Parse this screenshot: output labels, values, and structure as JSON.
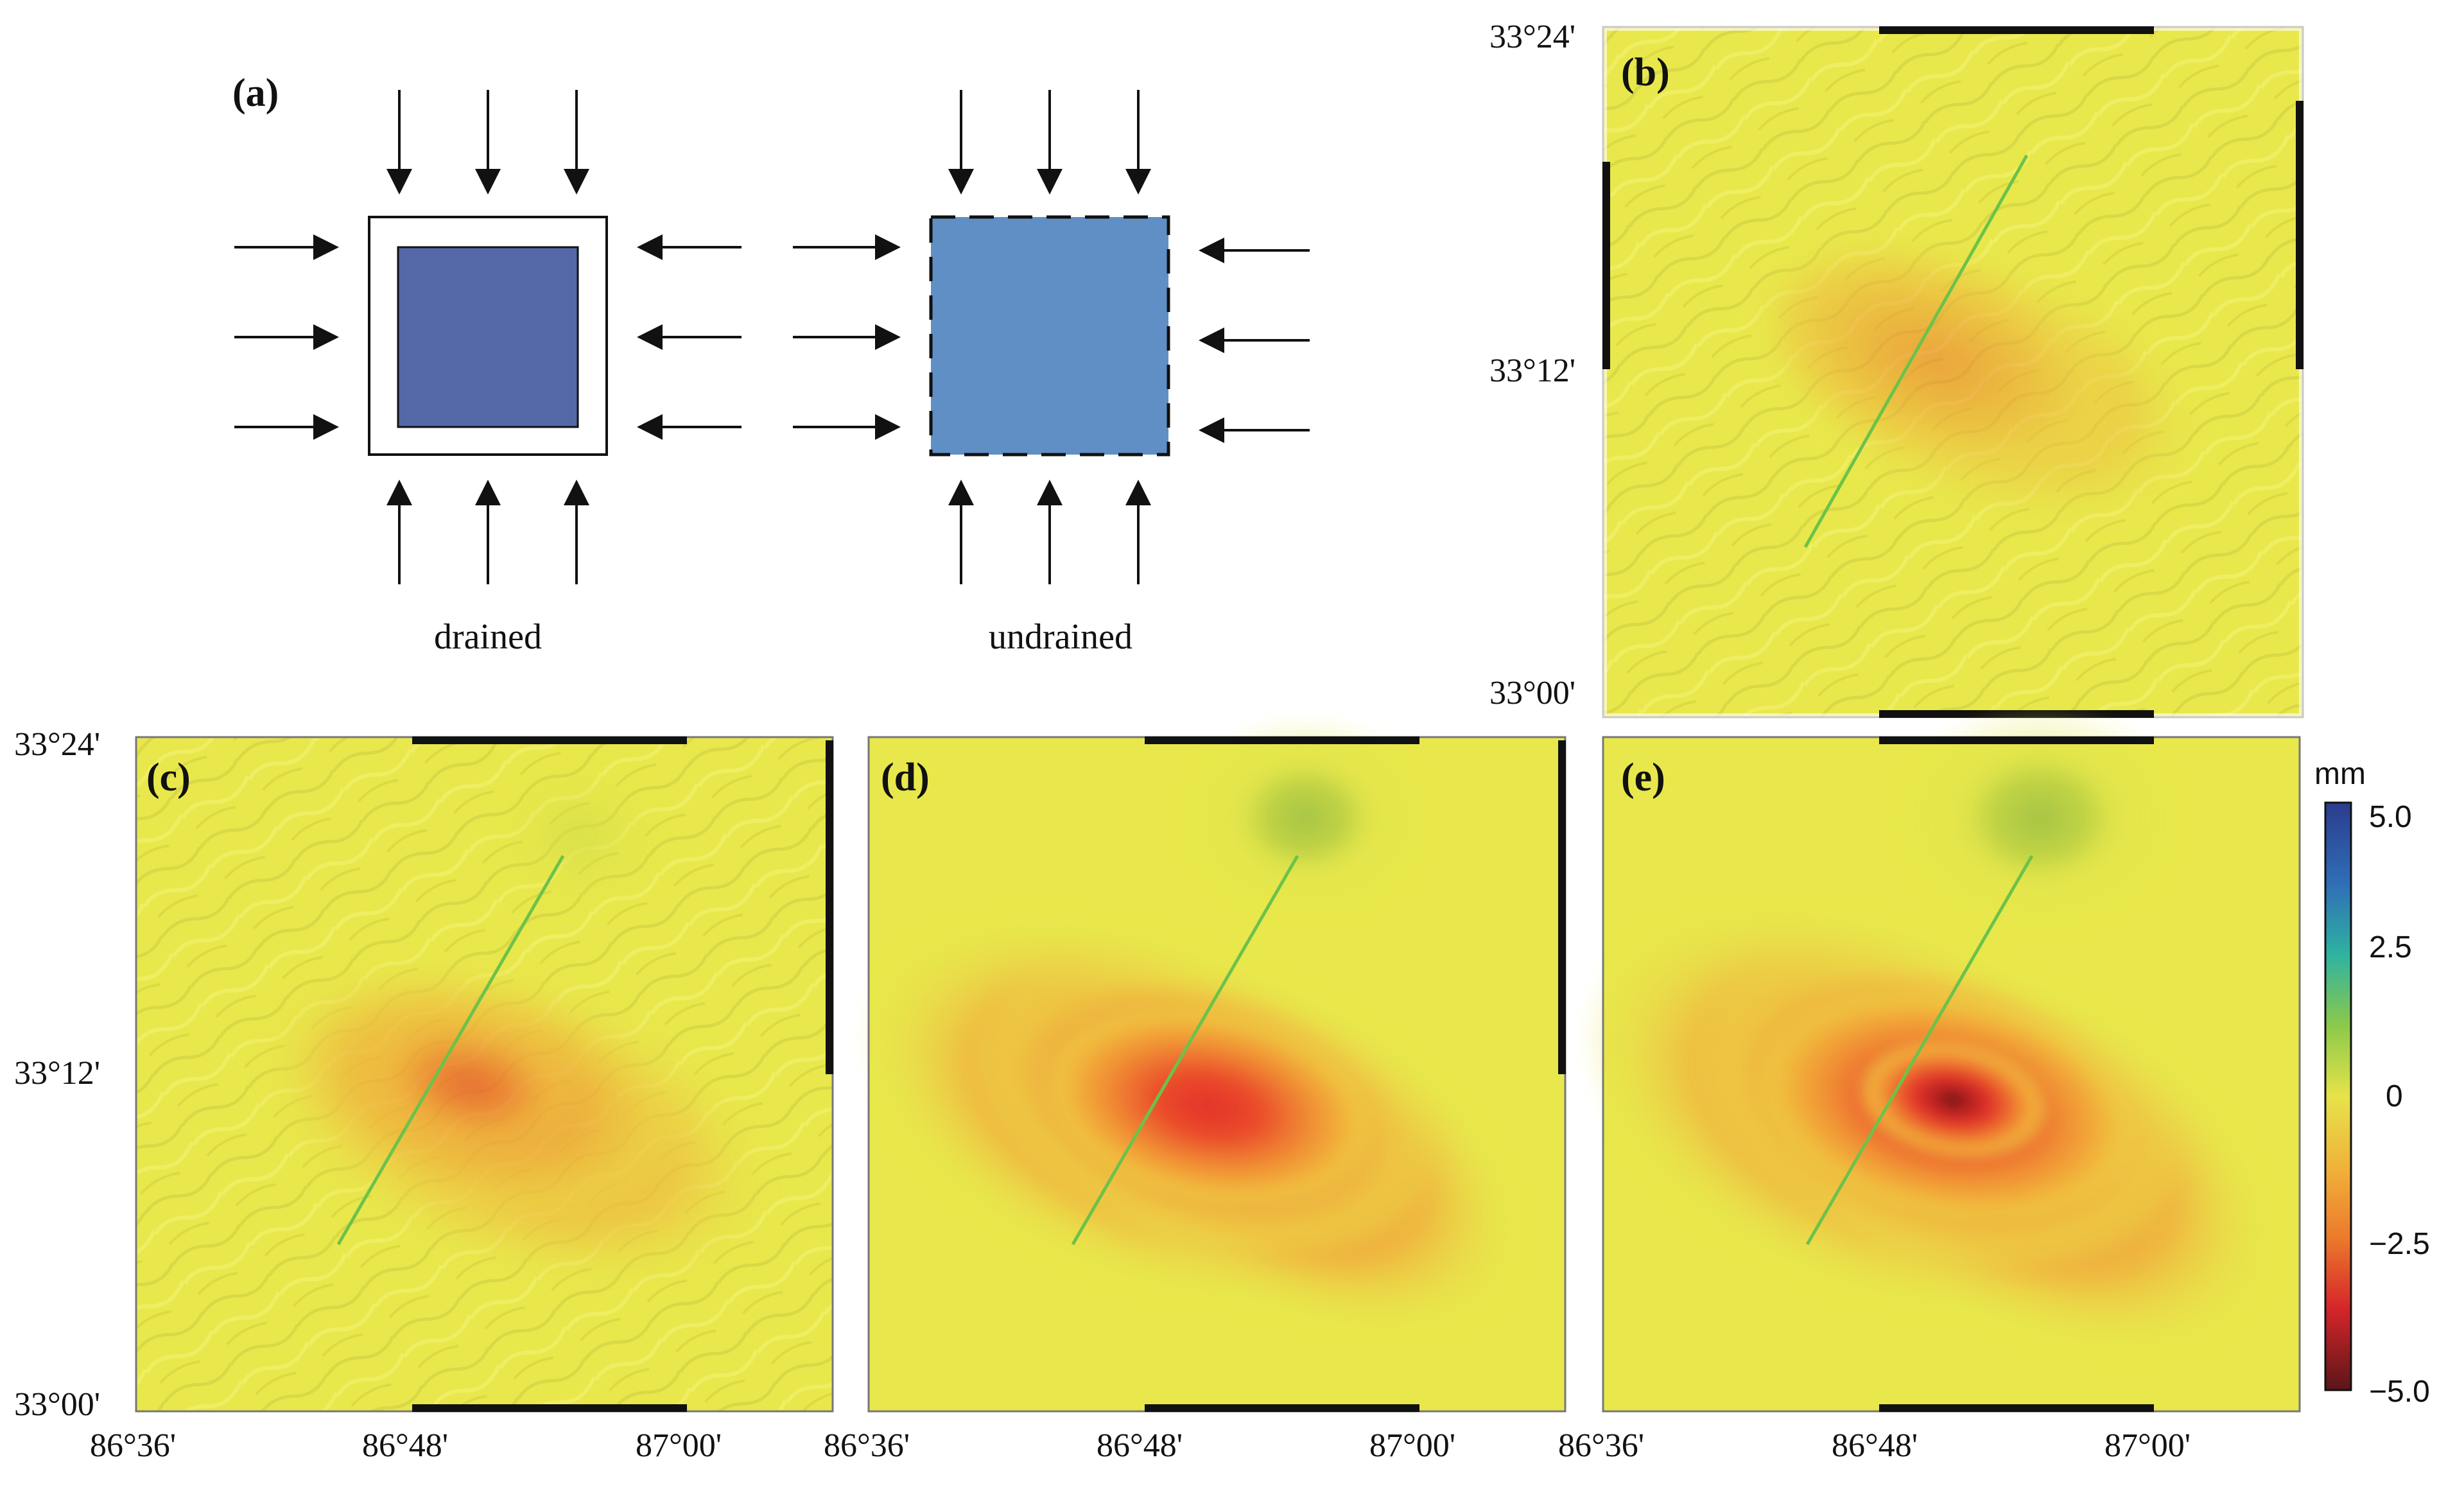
{
  "panel_labels": {
    "a": "(a)",
    "b": "(b)",
    "c": "(c)",
    "d": "(d)",
    "e": "(e)"
  },
  "diagram": {
    "drained_caption": "drained",
    "undrained_caption": "undrained"
  },
  "lat_ticks": {
    "top": "33°24'",
    "mid": "33°12'",
    "bottom": "33°00'"
  },
  "lon_ticks": {
    "left": "86°36'",
    "mid": "86°48'",
    "right": "87°00'"
  },
  "colorbar": {
    "unit": "mm",
    "ticks": [
      "5.0",
      "2.5",
      "0",
      "−2.5",
      "−5.0"
    ],
    "range": [
      -5.0,
      5.0
    ],
    "colors": {
      "max": "#2b3c8e",
      "mid_high": "#2fb3a0",
      "zero": "#e6e34a",
      "mid_low": "#ec7a2c",
      "low": "#d6262a",
      "min": "#5a1518"
    }
  },
  "colors": {
    "drained_fill": "#5468a8",
    "undrained_fill": "#5f8fc4",
    "map_background": "#e8e84c",
    "fault_line": "#6cc24a"
  }
}
